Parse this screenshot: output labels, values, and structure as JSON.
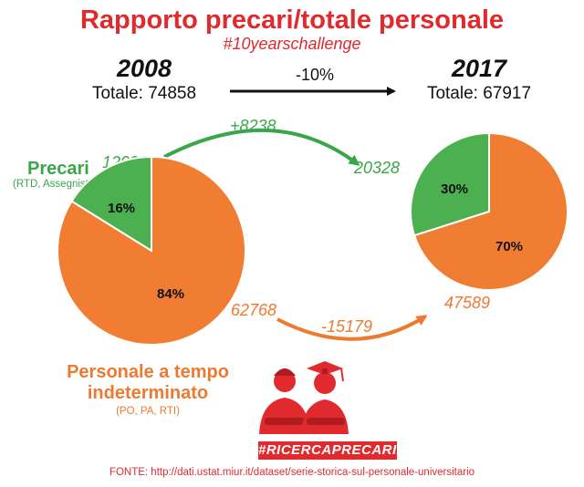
{
  "header": {
    "title": "Rapporto precari/totale personale",
    "hashtag": "#10yearschallenge"
  },
  "left": {
    "year": "2008",
    "total": "Totale: 74858"
  },
  "right": {
    "year": "2017",
    "total": "Totale: 67917"
  },
  "change_total": "-10%",
  "labels": {
    "precari": "Precari",
    "precari_sub": "(RTD, Assegnisti)",
    "personale_line1": "Personale a tempo",
    "personale_line2": "indeterminato",
    "personale_sub": "(PO, PA, RTI)"
  },
  "flows": {
    "precari_delta": "+8238",
    "personale_delta": "-15179"
  },
  "logo_text": "#RICERCAPRECARIA",
  "source": "FONTE: http://dati.ustat.miur.it/dataset/serie-storica-sul-personale-universitario",
  "colors": {
    "precari": "#4caf50",
    "personale": "#f07d31",
    "accent": "#e02a2e"
  },
  "chart_data": [
    {
      "type": "pie",
      "year": "2008",
      "slices": [
        {
          "label": "Precari",
          "value": 12090,
          "value_label": "12090",
          "percent": 16,
          "percent_label": "16%"
        },
        {
          "label": "Personale a tempo indeterminato",
          "value": 62768,
          "value_label": "62768",
          "percent": 84,
          "percent_label": "84%"
        }
      ]
    },
    {
      "type": "pie",
      "year": "2017",
      "slices": [
        {
          "label": "Precari",
          "value": 20328,
          "value_label": "20328",
          "percent": 30,
          "percent_label": "30%"
        },
        {
          "label": "Personale a tempo indeterminato",
          "value": 47589,
          "value_label": "47589",
          "percent": 70,
          "percent_label": "70%"
        }
      ]
    }
  ]
}
